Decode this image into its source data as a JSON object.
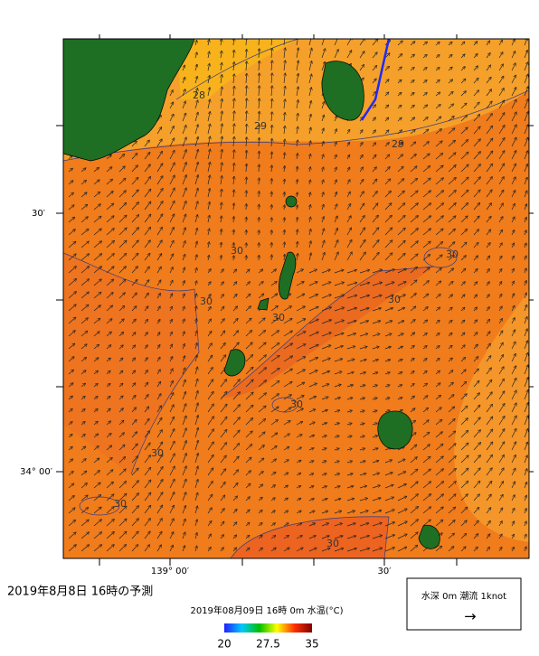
{
  "title": "2019年8月8日 16時の予測",
  "subtitle": "2019年08月09日 16時 0m 水温(°C)",
  "axes": {
    "y_labels": [
      "30′",
      "34° 00′"
    ],
    "x_labels": [
      "139° 00′",
      "30′"
    ]
  },
  "contour_labels": [
    "28",
    "29",
    "29",
    "30",
    "30",
    "30",
    "30",
    "30",
    "30",
    "30",
    "30",
    "30"
  ],
  "colorbar": {
    "range": [
      20,
      35
    ],
    "ticks": [
      20,
      27.5,
      35
    ]
  },
  "legend": {
    "text": "水深 0m 潮流 1knot",
    "arrow": "→"
  }
}
